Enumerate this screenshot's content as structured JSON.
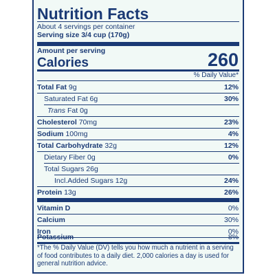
{
  "header": {
    "title": "Nutrition Facts",
    "servings_per_container": "About 4 servings per container",
    "serving_size": "Serving size 3/4 cup (170g)"
  },
  "calories": {
    "amount_label": "Amount per serving",
    "label": "Calories",
    "value": "260"
  },
  "dv_header": "% Daily Value*",
  "nutrients": {
    "total_fat": {
      "name": "Total Fat",
      "amount": "9g",
      "dv": "12%"
    },
    "saturated_fat": {
      "name": "Saturated Fat",
      "amount": "6g",
      "dv": "30%"
    },
    "trans_fat": {
      "name_italic": "Trans",
      "name": "Fat",
      "amount": "0g"
    },
    "cholesterol": {
      "name": "Cholesterol",
      "amount": "70mg",
      "dv": "23%"
    },
    "sodium": {
      "name": "Sodium",
      "amount": "100mg",
      "dv": "4%"
    },
    "total_carbohydrate": {
      "name": "Total Carbohydrate",
      "amount": "32g",
      "dv": "12%"
    },
    "dietary_fiber": {
      "name": "Dietary Fiber",
      "amount": "0g",
      "dv": "0%"
    },
    "total_sugars": {
      "name": "Total Sugars",
      "amount": "26g"
    },
    "added_sugars": {
      "prefix": "Incl.",
      "name": "Added Sugars",
      "amount": "12g",
      "dv": "24%"
    },
    "protein": {
      "name": "Protein",
      "amount": "13g",
      "dv": "26%"
    }
  },
  "vitamins": {
    "vitamin_d": {
      "name": "Vitamin D",
      "dv": "0%"
    },
    "calcium": {
      "name": "Calcium",
      "dv": "30%"
    },
    "iron": {
      "name": "Iron",
      "dv": "0%"
    },
    "potassium": {
      "name": "Potassium",
      "dv": "8%"
    }
  },
  "footnote": "*The % Daily Value (DV) tells you how much a nutrient in a serving of food contributes to a daily diet. 2,000 calories a day is used for general nutrition advice.",
  "colors": {
    "text_and_rules": "#1b3a75",
    "panel_background": "#f1f9f6"
  }
}
